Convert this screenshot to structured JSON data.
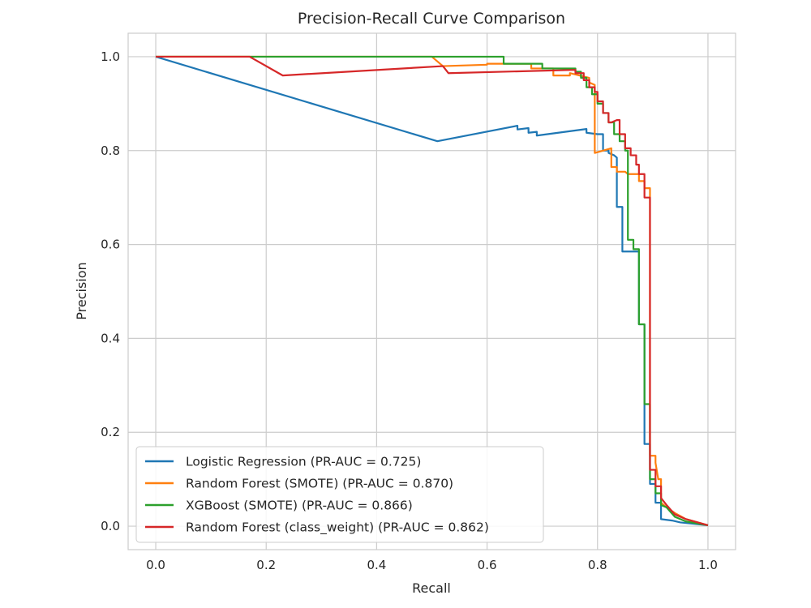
{
  "chart_data": {
    "type": "line",
    "title": "Precision-Recall Curve Comparison",
    "xlabel": "Recall",
    "ylabel": "Precision",
    "xlim": [
      -0.05,
      1.05
    ],
    "ylim": [
      -0.05,
      1.05
    ],
    "x_ticks": [
      0.0,
      0.2,
      0.4,
      0.6,
      0.8,
      1.0
    ],
    "y_ticks": [
      0.0,
      0.2,
      0.4,
      0.6,
      0.8,
      1.0
    ],
    "x_tick_labels": [
      "0.0",
      "0.2",
      "0.4",
      "0.6",
      "0.8",
      "1.0"
    ],
    "y_tick_labels": [
      "0.0",
      "0.2",
      "0.4",
      "0.6",
      "0.8",
      "1.0"
    ],
    "grid": true,
    "legend_position": "lower-left",
    "series": [
      {
        "name": "Logistic Regression (PR-AUC = 0.725)",
        "color": "#1f77b4",
        "points": [
          [
            0.0,
            1.0
          ],
          [
            0.51,
            0.82
          ],
          [
            0.655,
            0.853
          ],
          [
            0.655,
            0.845
          ],
          [
            0.675,
            0.848
          ],
          [
            0.675,
            0.838
          ],
          [
            0.69,
            0.84
          ],
          [
            0.69,
            0.832
          ],
          [
            0.78,
            0.846
          ],
          [
            0.78,
            0.838
          ],
          [
            0.8,
            0.835
          ],
          [
            0.81,
            0.835
          ],
          [
            0.81,
            0.8
          ],
          [
            0.82,
            0.8
          ],
          [
            0.82,
            0.795
          ],
          [
            0.83,
            0.79
          ],
          [
            0.835,
            0.785
          ],
          [
            0.835,
            0.68
          ],
          [
            0.845,
            0.68
          ],
          [
            0.845,
            0.585
          ],
          [
            0.86,
            0.585
          ],
          [
            0.875,
            0.585
          ],
          [
            0.875,
            0.43
          ],
          [
            0.885,
            0.43
          ],
          [
            0.885,
            0.175
          ],
          [
            0.895,
            0.175
          ],
          [
            0.895,
            0.09
          ],
          [
            0.905,
            0.09
          ],
          [
            0.905,
            0.05
          ],
          [
            0.915,
            0.05
          ],
          [
            0.915,
            0.015
          ],
          [
            0.935,
            0.012
          ],
          [
            0.95,
            0.008
          ],
          [
            1.0,
            0.002
          ]
        ]
      },
      {
        "name": "Random Forest (SMOTE) (PR-AUC = 0.870)",
        "color": "#ff7f0e",
        "points": [
          [
            0.0,
            1.0
          ],
          [
            0.5,
            1.0
          ],
          [
            0.52,
            0.98
          ],
          [
            0.6,
            0.983
          ],
          [
            0.6,
            0.985
          ],
          [
            0.68,
            0.985
          ],
          [
            0.68,
            0.975
          ],
          [
            0.72,
            0.975
          ],
          [
            0.72,
            0.96
          ],
          [
            0.75,
            0.96
          ],
          [
            0.75,
            0.965
          ],
          [
            0.785,
            0.955
          ],
          [
            0.785,
            0.945
          ],
          [
            0.795,
            0.94
          ],
          [
            0.795,
            0.795
          ],
          [
            0.825,
            0.805
          ],
          [
            0.825,
            0.765
          ],
          [
            0.835,
            0.765
          ],
          [
            0.835,
            0.755
          ],
          [
            0.85,
            0.755
          ],
          [
            0.855,
            0.75
          ],
          [
            0.875,
            0.75
          ],
          [
            0.875,
            0.735
          ],
          [
            0.885,
            0.735
          ],
          [
            0.885,
            0.72
          ],
          [
            0.895,
            0.72
          ],
          [
            0.895,
            0.15
          ],
          [
            0.905,
            0.15
          ],
          [
            0.905,
            0.135
          ],
          [
            0.91,
            0.1
          ],
          [
            0.915,
            0.1
          ],
          [
            0.915,
            0.05
          ],
          [
            0.925,
            0.04
          ],
          [
            0.94,
            0.028
          ],
          [
            0.96,
            0.015
          ],
          [
            1.0,
            0.002
          ]
        ]
      },
      {
        "name": "XGBoost (SMOTE) (PR-AUC = 0.866)",
        "color": "#2ca02c",
        "points": [
          [
            0.0,
            1.0
          ],
          [
            0.63,
            1.0
          ],
          [
            0.63,
            0.985
          ],
          [
            0.7,
            0.985
          ],
          [
            0.7,
            0.975
          ],
          [
            0.76,
            0.975
          ],
          [
            0.76,
            0.968
          ],
          [
            0.77,
            0.968
          ],
          [
            0.77,
            0.955
          ],
          [
            0.78,
            0.955
          ],
          [
            0.78,
            0.935
          ],
          [
            0.79,
            0.935
          ],
          [
            0.79,
            0.92
          ],
          [
            0.8,
            0.92
          ],
          [
            0.8,
            0.9
          ],
          [
            0.81,
            0.9
          ],
          [
            0.81,
            0.88
          ],
          [
            0.82,
            0.88
          ],
          [
            0.82,
            0.86
          ],
          [
            0.83,
            0.86
          ],
          [
            0.83,
            0.835
          ],
          [
            0.84,
            0.835
          ],
          [
            0.84,
            0.82
          ],
          [
            0.85,
            0.82
          ],
          [
            0.85,
            0.8
          ],
          [
            0.855,
            0.8
          ],
          [
            0.855,
            0.61
          ],
          [
            0.865,
            0.61
          ],
          [
            0.865,
            0.59
          ],
          [
            0.875,
            0.59
          ],
          [
            0.875,
            0.43
          ],
          [
            0.885,
            0.43
          ],
          [
            0.885,
            0.26
          ],
          [
            0.895,
            0.26
          ],
          [
            0.895,
            0.1
          ],
          [
            0.905,
            0.1
          ],
          [
            0.905,
            0.07
          ],
          [
            0.915,
            0.07
          ],
          [
            0.915,
            0.045
          ],
          [
            0.925,
            0.04
          ],
          [
            0.94,
            0.02
          ],
          [
            0.96,
            0.01
          ],
          [
            1.0,
            0.002
          ]
        ]
      },
      {
        "name": "Random Forest (class_weight) (PR-AUC = 0.862)",
        "color": "#d62728",
        "points": [
          [
            0.0,
            1.0
          ],
          [
            0.17,
            1.0
          ],
          [
            0.23,
            0.96
          ],
          [
            0.52,
            0.98
          ],
          [
            0.53,
            0.965
          ],
          [
            0.76,
            0.972
          ],
          [
            0.76,
            0.965
          ],
          [
            0.775,
            0.965
          ],
          [
            0.775,
            0.95
          ],
          [
            0.785,
            0.95
          ],
          [
            0.785,
            0.935
          ],
          [
            0.795,
            0.935
          ],
          [
            0.795,
            0.925
          ],
          [
            0.8,
            0.925
          ],
          [
            0.8,
            0.905
          ],
          [
            0.81,
            0.905
          ],
          [
            0.81,
            0.88
          ],
          [
            0.82,
            0.88
          ],
          [
            0.82,
            0.86
          ],
          [
            0.825,
            0.86
          ],
          [
            0.835,
            0.865
          ],
          [
            0.84,
            0.865
          ],
          [
            0.84,
            0.835
          ],
          [
            0.85,
            0.835
          ],
          [
            0.85,
            0.805
          ],
          [
            0.86,
            0.805
          ],
          [
            0.86,
            0.79
          ],
          [
            0.87,
            0.79
          ],
          [
            0.87,
            0.77
          ],
          [
            0.875,
            0.77
          ],
          [
            0.875,
            0.75
          ],
          [
            0.885,
            0.75
          ],
          [
            0.885,
            0.7
          ],
          [
            0.895,
            0.7
          ],
          [
            0.895,
            0.12
          ],
          [
            0.905,
            0.12
          ],
          [
            0.905,
            0.085
          ],
          [
            0.915,
            0.085
          ],
          [
            0.915,
            0.06
          ],
          [
            0.925,
            0.045
          ],
          [
            0.94,
            0.025
          ],
          [
            0.96,
            0.015
          ],
          [
            1.0,
            0.002
          ]
        ]
      }
    ]
  }
}
